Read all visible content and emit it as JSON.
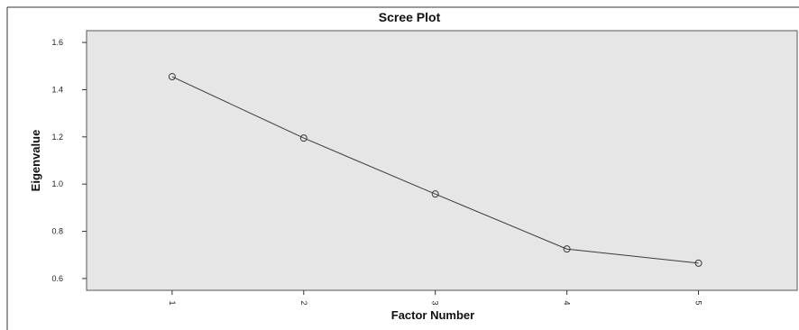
{
  "chart_data": {
    "type": "line",
    "title": "Scree Plot",
    "xlabel": "Factor Number",
    "ylabel": "Eigenvalue",
    "x": [
      1,
      2,
      3,
      4,
      5
    ],
    "x_tick_labels": [
      "1",
      "2",
      "3",
      "4",
      "5"
    ],
    "xlim": [
      0.35,
      5.75
    ],
    "ylim": [
      0.55,
      1.65
    ],
    "y_ticks": [
      0.6,
      0.8,
      1.0,
      1.2,
      1.4,
      1.6
    ],
    "y_tick_labels": [
      "0.6",
      "0.8",
      "1.0",
      "1.2",
      "1.4",
      "1.6"
    ],
    "series": [
      {
        "values": [
          1.455,
          1.195,
          0.958,
          0.725,
          0.665
        ],
        "marker": "circle"
      }
    ],
    "grid": false,
    "legend": "none",
    "colors": {
      "plot_background": "#e6e6e6",
      "line": "#3a3a3a",
      "marker": "#3a3a3a",
      "frame": "#555555"
    }
  }
}
